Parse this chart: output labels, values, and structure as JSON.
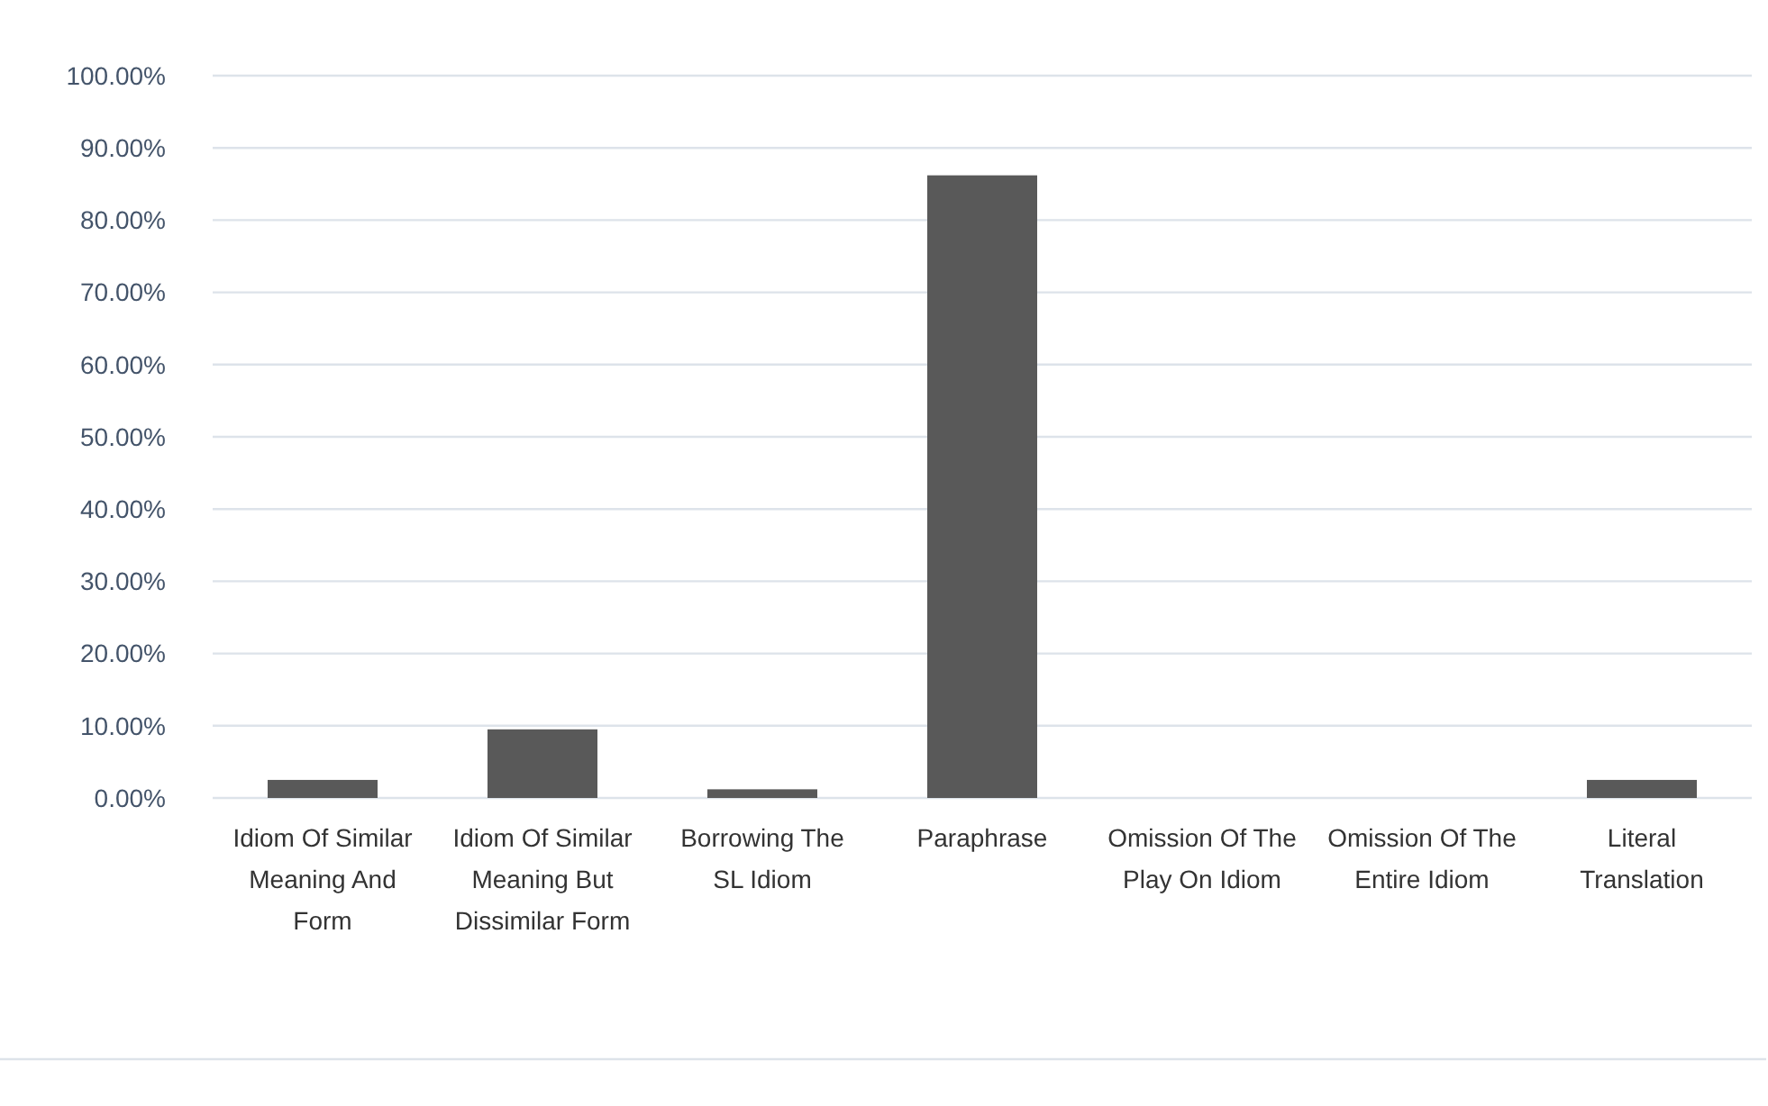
{
  "chart_data": {
    "type": "bar",
    "categories": [
      "Idiom Of Similar Meaning And Form",
      "Idiom Of Similar Meaning But Dissimilar Form",
      "Borrowing The SL Idiom",
      "Paraphrase",
      "Omission Of The Play On Idiom",
      "Omission Of The Entire Idiom",
      "Literal Translation"
    ],
    "values": [
      2.5,
      9.5,
      1.2,
      86.2,
      0,
      0,
      2.5
    ],
    "color": "#595959",
    "ylim": [
      0,
      100
    ],
    "yticks": [
      {
        "value": 0,
        "label": "0.00%"
      },
      {
        "value": 10,
        "label": "10.00%"
      },
      {
        "value": 20,
        "label": "20.00%"
      },
      {
        "value": 30,
        "label": "30.00%"
      },
      {
        "value": 40,
        "label": "40.00%"
      },
      {
        "value": 50,
        "label": "50.00%"
      },
      {
        "value": 60,
        "label": "60.00%"
      },
      {
        "value": 70,
        "label": "70.00%"
      },
      {
        "value": 80,
        "label": "80.00%"
      },
      {
        "value": 90,
        "label": "90.00%"
      },
      {
        "value": 100,
        "label": "100.00%"
      }
    ],
    "grid": "y"
  }
}
